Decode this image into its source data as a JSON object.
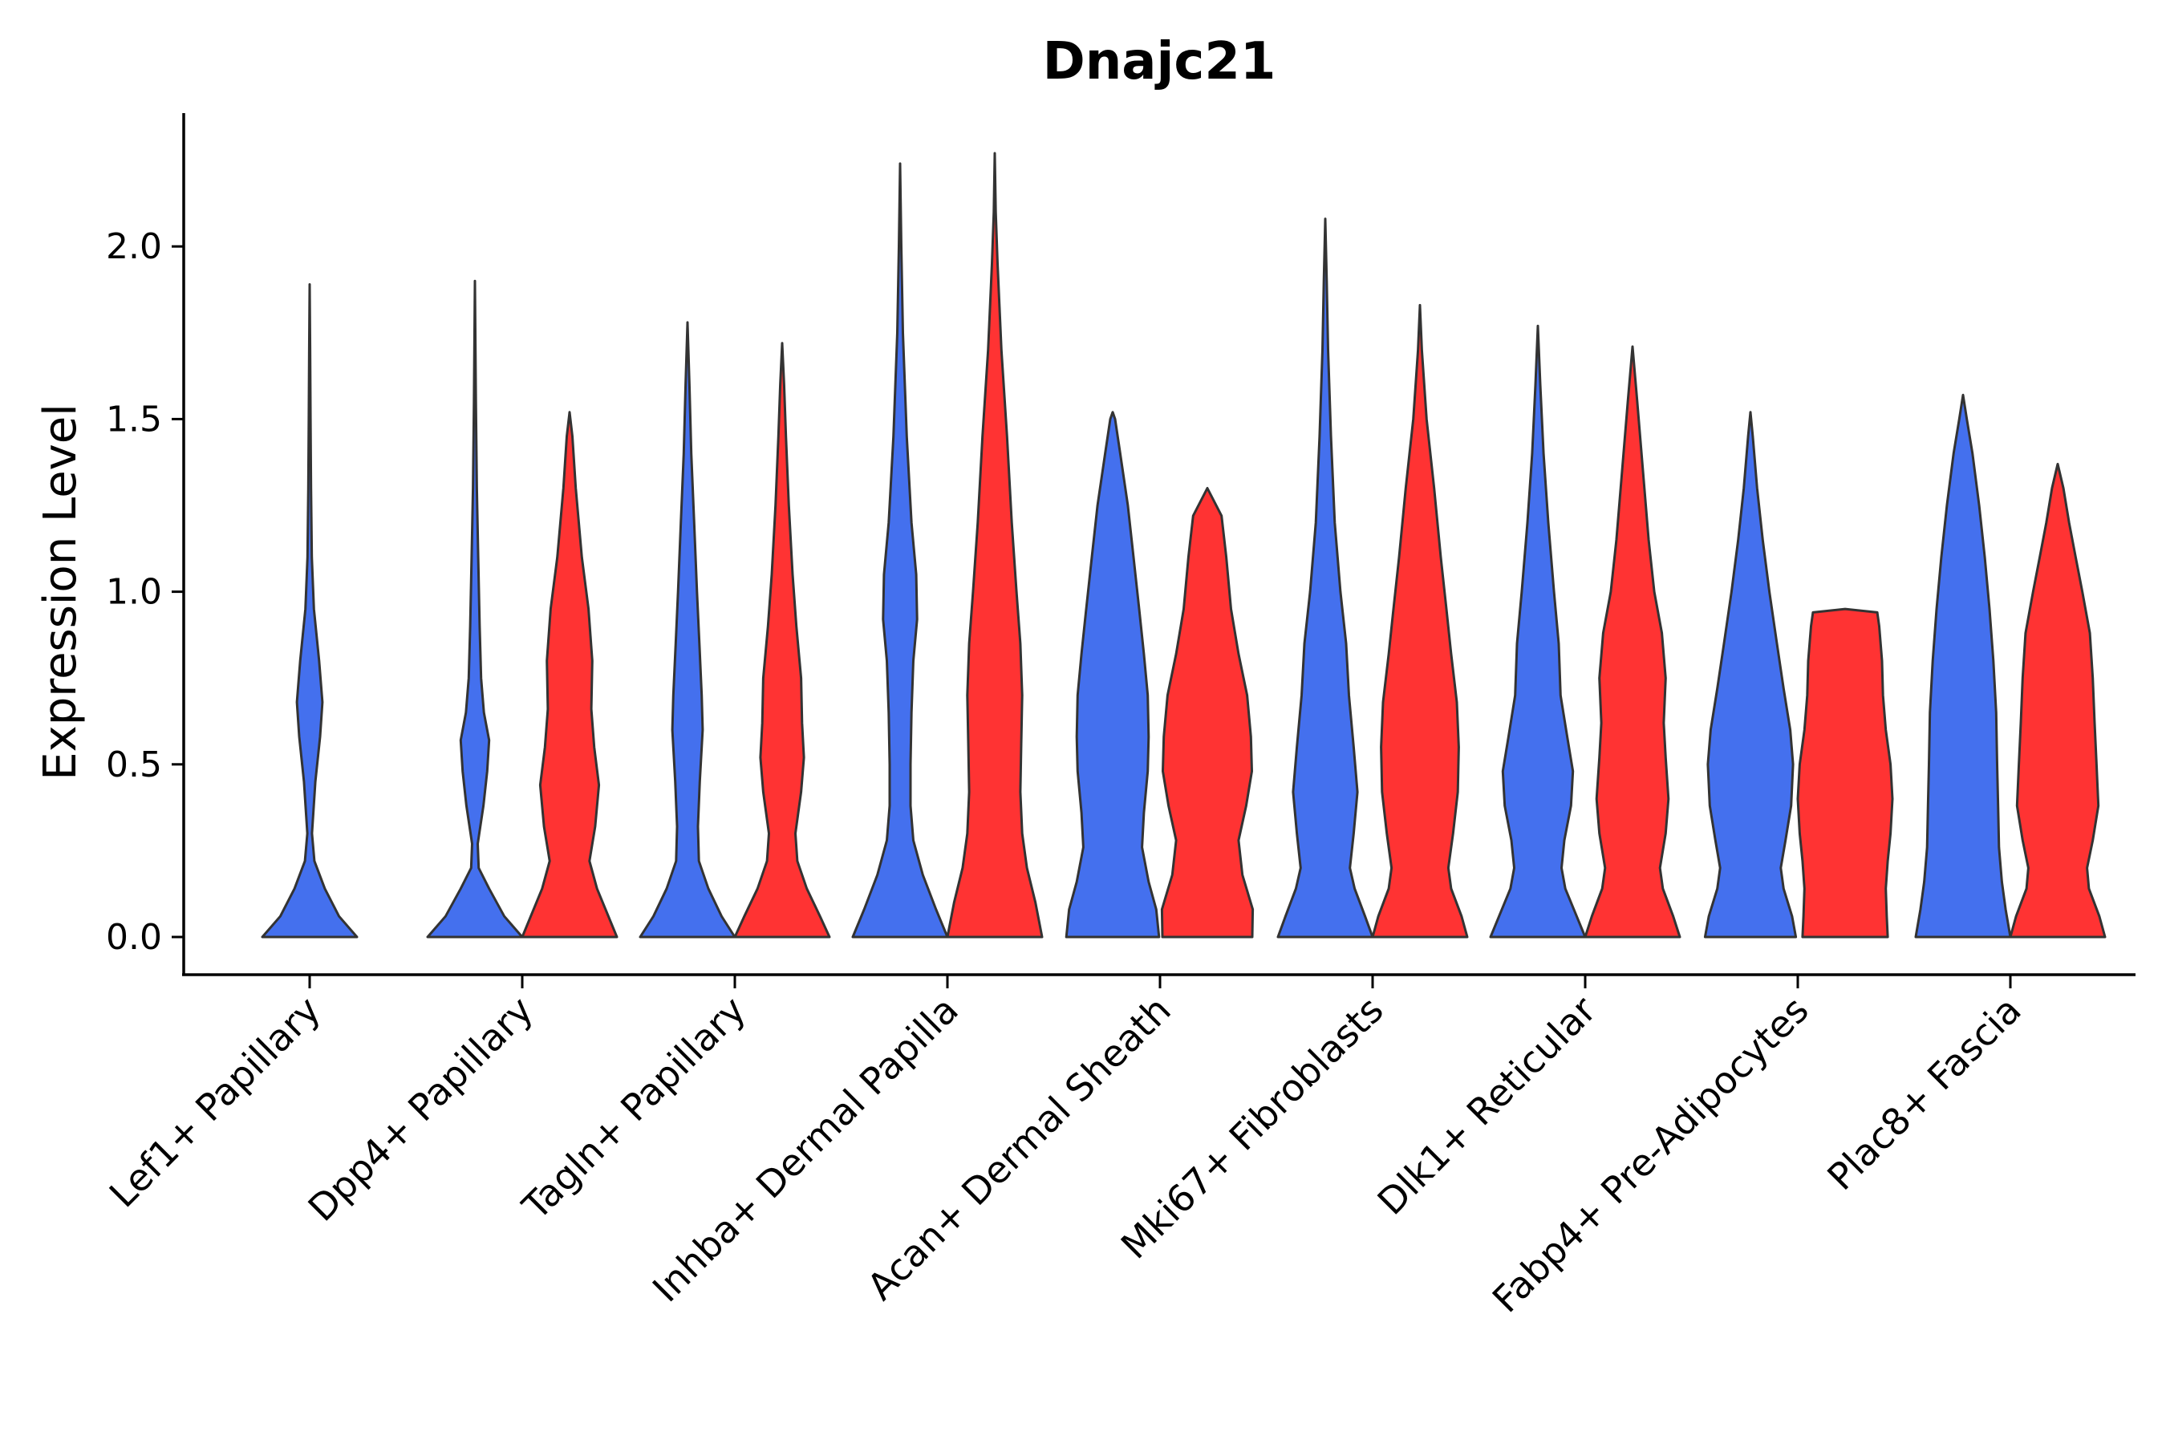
{
  "chart_data": {
    "type": "violin",
    "title": "Dnajc21",
    "xlabel": "",
    "ylabel": "Expression Level",
    "ylim": [
      -0.12,
      2.38
    ],
    "yticks": [
      0.0,
      0.5,
      1.0,
      1.5,
      2.0
    ],
    "ytick_labels": [
      "0.0",
      "0.5",
      "1.0",
      "1.5",
      "2.0"
    ],
    "categories": [
      "Lef1+ Papillary",
      "Dpp4+ Papillary",
      "Tagln+ Papillary",
      "Inhba+ Dermal Papilla",
      "Acan+ Dermal Sheath",
      "Mki67+ Fibroblasts",
      "Dlk1+ Reticular",
      "Fabp4+ Pre-Adipocytes",
      "Plac8+ Fascia"
    ],
    "series_colors": {
      "blue": "#4470EE",
      "red": "#FF3333"
    },
    "violins": [
      {
        "category": "Lef1+ Papillary",
        "side": "blue",
        "centered": true,
        "max": 1.89,
        "profile": [
          [
            0.0,
            1.0
          ],
          [
            0.06,
            0.62
          ],
          [
            0.14,
            0.32
          ],
          [
            0.22,
            0.1
          ],
          [
            0.3,
            0.05
          ],
          [
            0.45,
            0.12
          ],
          [
            0.58,
            0.22
          ],
          [
            0.68,
            0.27
          ],
          [
            0.8,
            0.2
          ],
          [
            0.95,
            0.09
          ],
          [
            1.1,
            0.045
          ],
          [
            1.3,
            0.028
          ],
          [
            1.5,
            0.018
          ],
          [
            1.7,
            0.01
          ],
          [
            1.89,
            0.0
          ]
        ]
      },
      {
        "category": "Dpp4+ Papillary",
        "side": "blue",
        "centered": false,
        "max": 1.9,
        "profile": [
          [
            0.0,
            1.0
          ],
          [
            0.06,
            0.62
          ],
          [
            0.14,
            0.3
          ],
          [
            0.2,
            0.08
          ],
          [
            0.27,
            0.06
          ],
          [
            0.38,
            0.18
          ],
          [
            0.48,
            0.26
          ],
          [
            0.57,
            0.3
          ],
          [
            0.65,
            0.19
          ],
          [
            0.75,
            0.13
          ],
          [
            0.9,
            0.1
          ],
          [
            1.1,
            0.07
          ],
          [
            1.3,
            0.04
          ],
          [
            1.55,
            0.02
          ],
          [
            1.9,
            0.0
          ]
        ]
      },
      {
        "category": "Dpp4+ Papillary",
        "side": "red",
        "centered": false,
        "max": 1.52,
        "profile": [
          [
            0.0,
            1.0
          ],
          [
            0.06,
            0.82
          ],
          [
            0.14,
            0.58
          ],
          [
            0.22,
            0.42
          ],
          [
            0.32,
            0.54
          ],
          [
            0.44,
            0.62
          ],
          [
            0.55,
            0.52
          ],
          [
            0.66,
            0.46
          ],
          [
            0.8,
            0.48
          ],
          [
            0.95,
            0.4
          ],
          [
            1.1,
            0.26
          ],
          [
            1.3,
            0.13
          ],
          [
            1.45,
            0.06
          ],
          [
            1.52,
            0.0
          ]
        ]
      },
      {
        "category": "Tagln+ Papillary",
        "side": "blue",
        "centered": false,
        "max": 1.78,
        "profile": [
          [
            0.0,
            1.0
          ],
          [
            0.06,
            0.72
          ],
          [
            0.14,
            0.44
          ],
          [
            0.22,
            0.24
          ],
          [
            0.32,
            0.22
          ],
          [
            0.45,
            0.26
          ],
          [
            0.6,
            0.32
          ],
          [
            0.7,
            0.3
          ],
          [
            0.85,
            0.25
          ],
          [
            1.0,
            0.2
          ],
          [
            1.2,
            0.14
          ],
          [
            1.4,
            0.08
          ],
          [
            1.6,
            0.04
          ],
          [
            1.78,
            0.0
          ]
        ]
      },
      {
        "category": "Tagln+ Papillary",
        "side": "red",
        "centered": false,
        "max": 1.72,
        "profile": [
          [
            0.0,
            1.0
          ],
          [
            0.06,
            0.8
          ],
          [
            0.14,
            0.52
          ],
          [
            0.22,
            0.32
          ],
          [
            0.3,
            0.28
          ],
          [
            0.42,
            0.4
          ],
          [
            0.52,
            0.46
          ],
          [
            0.62,
            0.42
          ],
          [
            0.75,
            0.4
          ],
          [
            0.9,
            0.3
          ],
          [
            1.05,
            0.22
          ],
          [
            1.25,
            0.14
          ],
          [
            1.45,
            0.08
          ],
          [
            1.6,
            0.04
          ],
          [
            1.72,
            0.0
          ]
        ]
      },
      {
        "category": "Inhba+ Dermal Papilla",
        "side": "blue",
        "centered": false,
        "max": 2.24,
        "profile": [
          [
            0.0,
            1.0
          ],
          [
            0.08,
            0.76
          ],
          [
            0.18,
            0.48
          ],
          [
            0.28,
            0.28
          ],
          [
            0.38,
            0.22
          ],
          [
            0.5,
            0.22
          ],
          [
            0.65,
            0.24
          ],
          [
            0.8,
            0.28
          ],
          [
            0.92,
            0.36
          ],
          [
            1.05,
            0.34
          ],
          [
            1.2,
            0.24
          ],
          [
            1.45,
            0.14
          ],
          [
            1.75,
            0.06
          ],
          [
            2.0,
            0.025
          ],
          [
            2.24,
            0.0
          ]
        ]
      },
      {
        "category": "Inhba+ Dermal Papilla",
        "side": "red",
        "centered": false,
        "max": 2.27,
        "profile": [
          [
            0.0,
            1.0
          ],
          [
            0.1,
            0.86
          ],
          [
            0.2,
            0.68
          ],
          [
            0.3,
            0.58
          ],
          [
            0.42,
            0.54
          ],
          [
            0.56,
            0.56
          ],
          [
            0.7,
            0.58
          ],
          [
            0.85,
            0.54
          ],
          [
            1.0,
            0.46
          ],
          [
            1.2,
            0.36
          ],
          [
            1.45,
            0.26
          ],
          [
            1.7,
            0.14
          ],
          [
            1.95,
            0.06
          ],
          [
            2.1,
            0.02
          ],
          [
            2.27,
            0.0
          ]
        ]
      },
      {
        "category": "Acan+ Dermal Sheath",
        "side": "blue",
        "centered": false,
        "max": 1.52,
        "profile": [
          [
            0.0,
            0.98
          ],
          [
            0.08,
            0.92
          ],
          [
            0.16,
            0.76
          ],
          [
            0.26,
            0.62
          ],
          [
            0.36,
            0.66
          ],
          [
            0.48,
            0.74
          ],
          [
            0.58,
            0.76
          ],
          [
            0.7,
            0.74
          ],
          [
            0.82,
            0.66
          ],
          [
            0.95,
            0.56
          ],
          [
            1.1,
            0.44
          ],
          [
            1.25,
            0.32
          ],
          [
            1.4,
            0.16
          ],
          [
            1.5,
            0.05
          ],
          [
            1.52,
            0.0
          ]
        ]
      },
      {
        "category": "Acan+ Dermal Sheath",
        "side": "red",
        "centered": false,
        "max": 1.3,
        "profile": [
          [
            0.0,
            0.95
          ],
          [
            0.08,
            0.96
          ],
          [
            0.18,
            0.74
          ],
          [
            0.28,
            0.66
          ],
          [
            0.38,
            0.82
          ],
          [
            0.48,
            0.94
          ],
          [
            0.58,
            0.92
          ],
          [
            0.7,
            0.84
          ],
          [
            0.82,
            0.66
          ],
          [
            0.95,
            0.5
          ],
          [
            1.1,
            0.4
          ],
          [
            1.22,
            0.3
          ],
          [
            1.3,
            0.0
          ]
        ]
      },
      {
        "category": "Mki67+ Fibroblasts",
        "side": "blue",
        "centered": false,
        "max": 2.08,
        "profile": [
          [
            0.0,
            1.0
          ],
          [
            0.06,
            0.84
          ],
          [
            0.14,
            0.62
          ],
          [
            0.2,
            0.52
          ],
          [
            0.3,
            0.6
          ],
          [
            0.42,
            0.68
          ],
          [
            0.55,
            0.6
          ],
          [
            0.7,
            0.5
          ],
          [
            0.85,
            0.44
          ],
          [
            1.0,
            0.32
          ],
          [
            1.2,
            0.2
          ],
          [
            1.45,
            0.12
          ],
          [
            1.7,
            0.06
          ],
          [
            1.9,
            0.03
          ],
          [
            2.08,
            0.0
          ]
        ]
      },
      {
        "category": "Mki67+ Fibroblasts",
        "side": "red",
        "centered": false,
        "max": 1.83,
        "profile": [
          [
            0.0,
            1.0
          ],
          [
            0.06,
            0.88
          ],
          [
            0.14,
            0.66
          ],
          [
            0.2,
            0.6
          ],
          [
            0.3,
            0.7
          ],
          [
            0.42,
            0.8
          ],
          [
            0.55,
            0.82
          ],
          [
            0.68,
            0.78
          ],
          [
            0.82,
            0.66
          ],
          [
            0.95,
            0.56
          ],
          [
            1.1,
            0.44
          ],
          [
            1.3,
            0.3
          ],
          [
            1.5,
            0.14
          ],
          [
            1.7,
            0.04
          ],
          [
            1.83,
            0.0
          ]
        ]
      },
      {
        "category": "Dlk1+ Reticular",
        "side": "blue",
        "centered": false,
        "max": 1.77,
        "profile": [
          [
            0.0,
            1.0
          ],
          [
            0.06,
            0.82
          ],
          [
            0.14,
            0.58
          ],
          [
            0.2,
            0.5
          ],
          [
            0.28,
            0.56
          ],
          [
            0.38,
            0.7
          ],
          [
            0.48,
            0.74
          ],
          [
            0.58,
            0.62
          ],
          [
            0.7,
            0.48
          ],
          [
            0.85,
            0.44
          ],
          [
            1.0,
            0.34
          ],
          [
            1.2,
            0.22
          ],
          [
            1.4,
            0.12
          ],
          [
            1.6,
            0.05
          ],
          [
            1.77,
            0.0
          ]
        ]
      },
      {
        "category": "Dlk1+ Reticular",
        "side": "red",
        "centered": false,
        "max": 1.71,
        "profile": [
          [
            0.0,
            1.0
          ],
          [
            0.06,
            0.86
          ],
          [
            0.14,
            0.64
          ],
          [
            0.2,
            0.58
          ],
          [
            0.3,
            0.7
          ],
          [
            0.4,
            0.76
          ],
          [
            0.52,
            0.7
          ],
          [
            0.62,
            0.66
          ],
          [
            0.75,
            0.7
          ],
          [
            0.88,
            0.62
          ],
          [
            1.0,
            0.46
          ],
          [
            1.15,
            0.34
          ],
          [
            1.35,
            0.22
          ],
          [
            1.55,
            0.1
          ],
          [
            1.71,
            0.0
          ]
        ]
      },
      {
        "category": "Fabp4+ Pre-Adipocytes",
        "side": "blue",
        "centered": false,
        "max": 1.52,
        "profile": [
          [
            0.0,
            0.96
          ],
          [
            0.06,
            0.88
          ],
          [
            0.14,
            0.7
          ],
          [
            0.2,
            0.64
          ],
          [
            0.28,
            0.74
          ],
          [
            0.38,
            0.86
          ],
          [
            0.5,
            0.9
          ],
          [
            0.6,
            0.84
          ],
          [
            0.72,
            0.7
          ],
          [
            0.85,
            0.56
          ],
          [
            1.0,
            0.4
          ],
          [
            1.15,
            0.26
          ],
          [
            1.3,
            0.14
          ],
          [
            1.45,
            0.05
          ],
          [
            1.52,
            0.0
          ]
        ]
      },
      {
        "category": "Fabp4+ Pre-Adipocytes",
        "side": "red",
        "centered": false,
        "max": 0.95,
        "profile": [
          [
            0.0,
            0.9
          ],
          [
            0.06,
            0.88
          ],
          [
            0.14,
            0.86
          ],
          [
            0.22,
            0.9
          ],
          [
            0.3,
            0.96
          ],
          [
            0.4,
            1.0
          ],
          [
            0.5,
            0.96
          ],
          [
            0.6,
            0.86
          ],
          [
            0.7,
            0.8
          ],
          [
            0.8,
            0.78
          ],
          [
            0.9,
            0.72
          ],
          [
            0.94,
            0.68
          ],
          [
            0.95,
            0.0
          ]
        ]
      },
      {
        "category": "Plac8+ Fascia",
        "side": "blue",
        "centered": false,
        "max": 1.57,
        "profile": [
          [
            0.0,
            1.0
          ],
          [
            0.08,
            0.9
          ],
          [
            0.16,
            0.82
          ],
          [
            0.26,
            0.76
          ],
          [
            0.38,
            0.74
          ],
          [
            0.5,
            0.72
          ],
          [
            0.65,
            0.7
          ],
          [
            0.8,
            0.64
          ],
          [
            0.95,
            0.56
          ],
          [
            1.1,
            0.46
          ],
          [
            1.25,
            0.34
          ],
          [
            1.4,
            0.2
          ],
          [
            1.5,
            0.08
          ],
          [
            1.57,
            0.0
          ]
        ]
      },
      {
        "category": "Plac8+ Fascia",
        "side": "red",
        "centered": false,
        "max": 1.37,
        "profile": [
          [
            0.0,
            1.0
          ],
          [
            0.06,
            0.88
          ],
          [
            0.14,
            0.66
          ],
          [
            0.2,
            0.62
          ],
          [
            0.28,
            0.74
          ],
          [
            0.38,
            0.86
          ],
          [
            0.5,
            0.82
          ],
          [
            0.62,
            0.78
          ],
          [
            0.75,
            0.74
          ],
          [
            0.88,
            0.68
          ],
          [
            1.0,
            0.52
          ],
          [
            1.1,
            0.38
          ],
          [
            1.2,
            0.24
          ],
          [
            1.3,
            0.12
          ],
          [
            1.37,
            0.0
          ]
        ]
      }
    ]
  }
}
